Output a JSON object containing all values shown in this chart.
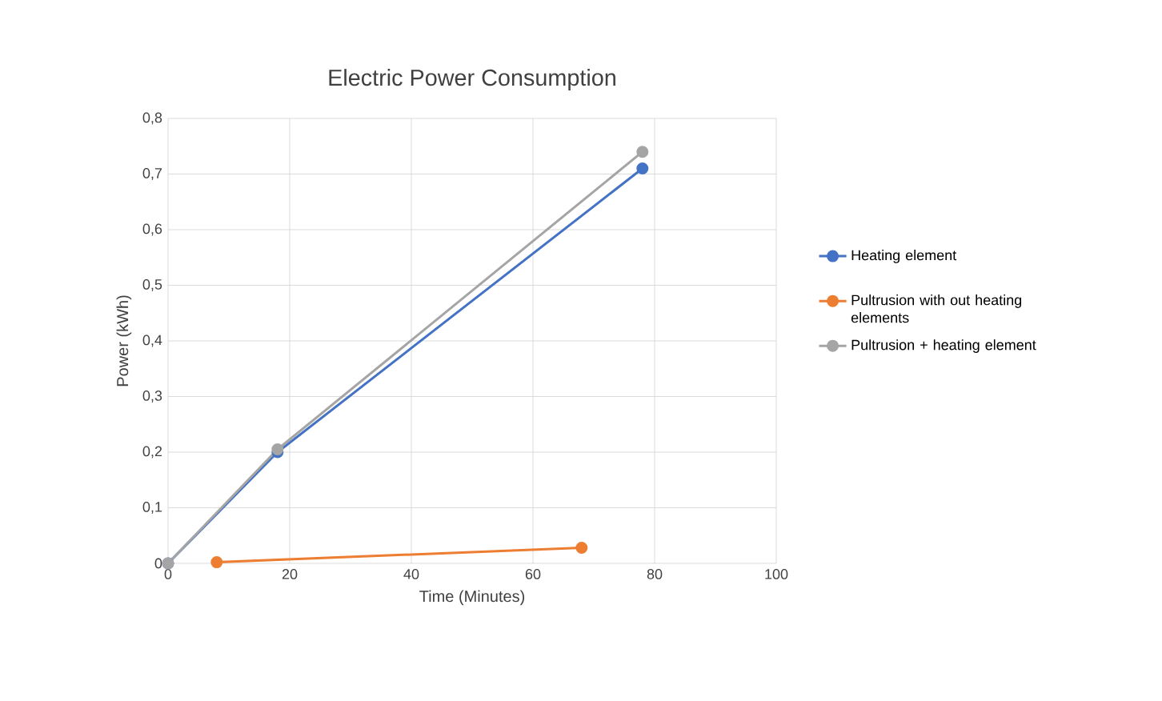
{
  "chart_data": {
    "type": "line",
    "title": "Electric Power Consumption",
    "xlabel": "Time (Minutes)",
    "ylabel": "Power (kWh)",
    "xlim": [
      0,
      100
    ],
    "xticks": [
      0,
      20,
      40,
      60,
      80,
      100
    ],
    "ylim": [
      0,
      0.8
    ],
    "yticks": [
      0,
      {
        "value": 0.1,
        "label": "0,1"
      },
      {
        "value": 0.2,
        "label": "0,2"
      },
      {
        "value": 0.3,
        "label": "0,3"
      },
      {
        "value": 0.4,
        "label": "0,4"
      },
      {
        "value": 0.5,
        "label": "0,5"
      },
      {
        "value": 0.6,
        "label": "0,6"
      },
      {
        "value": 0.7,
        "label": "0,7"
      },
      {
        "value": 0.8,
        "label": "0,8"
      }
    ],
    "grid": true,
    "legend": "right",
    "marker": "circle",
    "line_style": "solid",
    "series": [
      {
        "name": "Heating element",
        "color": "#4472c4",
        "x": [
          0,
          18,
          78
        ],
        "values": [
          0,
          0.2,
          0.71
        ]
      },
      {
        "name": "Pultrusion with out heating elements",
        "color": "#ed7d31",
        "x": [
          8,
          68
        ],
        "values": [
          0.002,
          0.028
        ]
      },
      {
        "name": "Pultrusion + heating element",
        "color": "#a5a5a5",
        "x": [
          0,
          18,
          78
        ],
        "values": [
          0,
          0.205,
          0.74
        ]
      }
    ]
  }
}
